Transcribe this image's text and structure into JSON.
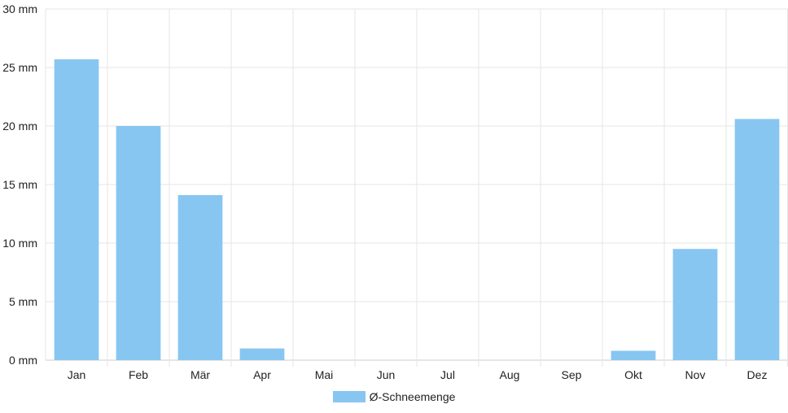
{
  "chart_data": {
    "type": "bar",
    "categories": [
      "Jan",
      "Feb",
      "Mär",
      "Apr",
      "Mai",
      "Jun",
      "Jul",
      "Aug",
      "Sep",
      "Okt",
      "Nov",
      "Dez"
    ],
    "series": [
      {
        "name": "Ø-Schneemenge",
        "values": [
          25.7,
          20.0,
          14.1,
          1.0,
          0,
          0,
          0,
          0,
          0,
          0.8,
          9.5,
          20.6
        ]
      }
    ],
    "y_ticks": [
      "0 mm",
      "5 mm",
      "10 mm",
      "15 mm",
      "20 mm",
      "25 mm",
      "30 mm"
    ],
    "ylim": [
      0,
      30
    ],
    "y_unit": "mm",
    "grid": true,
    "legend_position": "bottom-center",
    "bar_color": "#88c6f2",
    "grid_color": "#e6e6e6"
  },
  "legend": {
    "label": "Ø-Schneemenge"
  }
}
